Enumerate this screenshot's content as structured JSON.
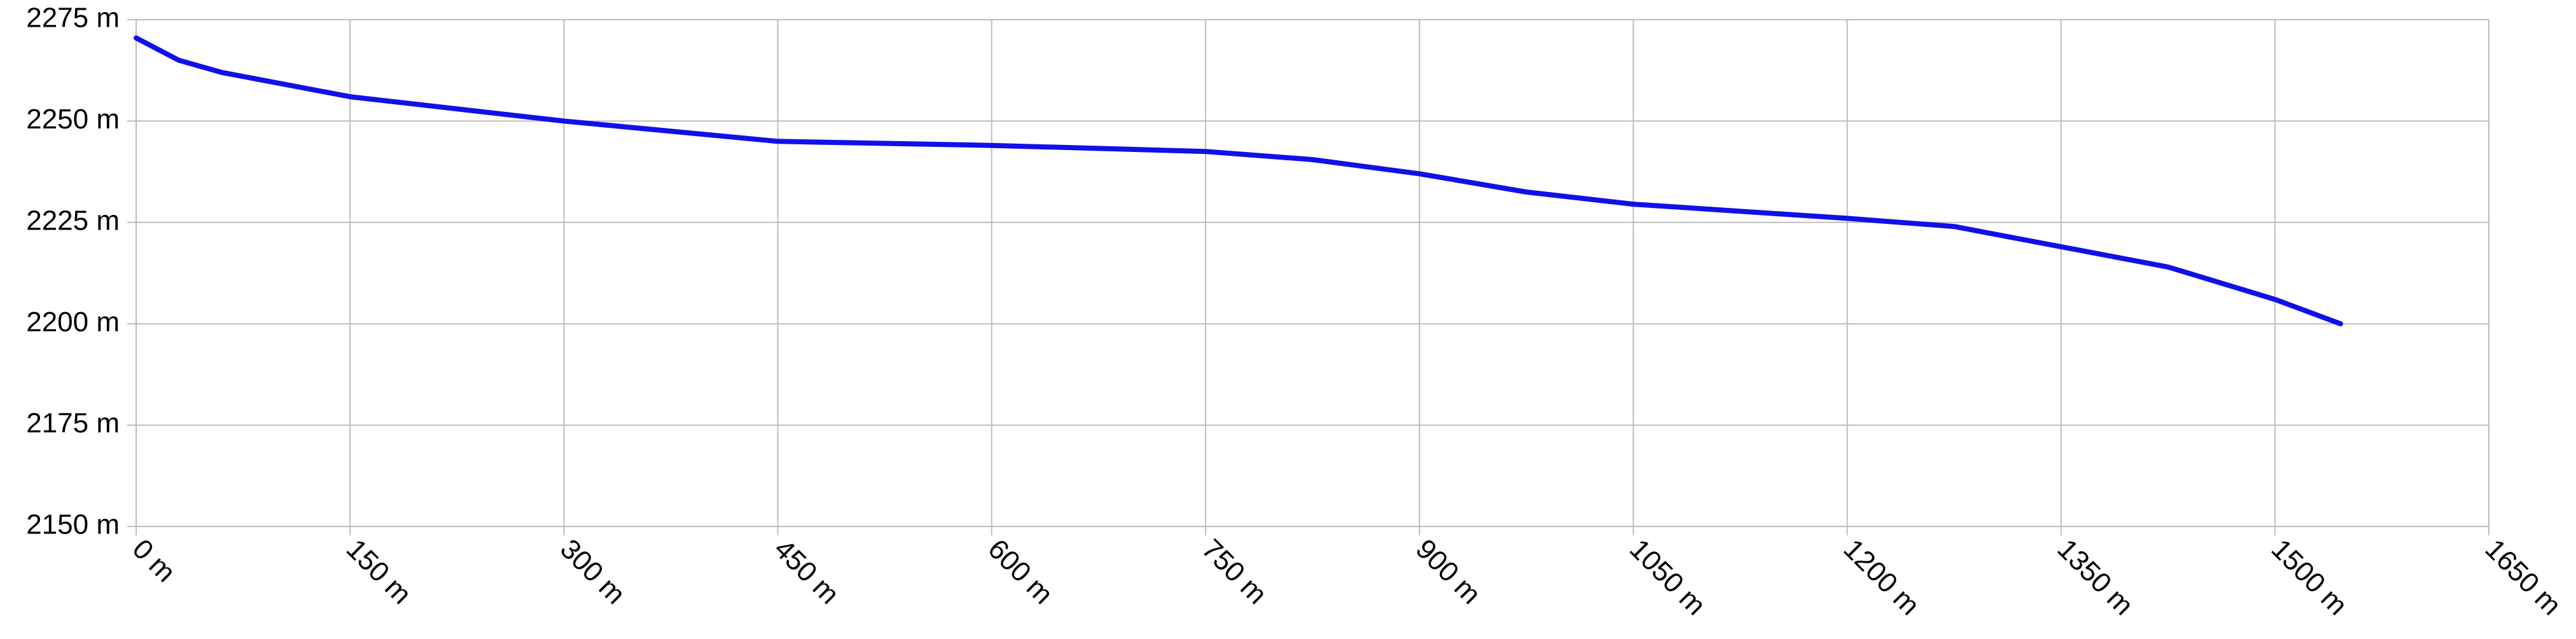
{
  "chart_data": {
    "type": "line",
    "x": [
      0,
      30,
      60,
      150,
      300,
      450,
      600,
      750,
      825,
      900,
      975,
      1050,
      1200,
      1275,
      1350,
      1425,
      1500,
      1546
    ],
    "values": [
      2270.5,
      2265,
      2262,
      2256,
      2250,
      2245,
      2244,
      2242.5,
      2240.5,
      2237,
      2232.5,
      2229.5,
      2226,
      2224,
      2219,
      2214,
      2206,
      2200
    ],
    "color": "#1010e8",
    "xlim": [
      0,
      1650
    ],
    "ylim": [
      2150,
      2275
    ],
    "xticks": [
      {
        "value": 0,
        "label": "0 m"
      },
      {
        "value": 150,
        "label": "150 m"
      },
      {
        "value": 300,
        "label": "300 m"
      },
      {
        "value": 450,
        "label": "450 m"
      },
      {
        "value": 600,
        "label": "600 m"
      },
      {
        "value": 750,
        "label": "750 m"
      },
      {
        "value": 900,
        "label": "900 m"
      },
      {
        "value": 1050,
        "label": "1050 m"
      },
      {
        "value": 1200,
        "label": "1200 m"
      },
      {
        "value": 1350,
        "label": "1350 m"
      },
      {
        "value": 1500,
        "label": "1500 m"
      },
      {
        "value": 1650,
        "label": "1650 m"
      }
    ],
    "yticks": [
      {
        "value": 2150,
        "label": "2150 m"
      },
      {
        "value": 2175,
        "label": "2175 m"
      },
      {
        "value": 2200,
        "label": "2200 m"
      },
      {
        "value": 2225,
        "label": "2225 m"
      },
      {
        "value": 2250,
        "label": "2250 m"
      },
      {
        "value": 2275,
        "label": "2275 m"
      }
    ],
    "grid": true
  }
}
